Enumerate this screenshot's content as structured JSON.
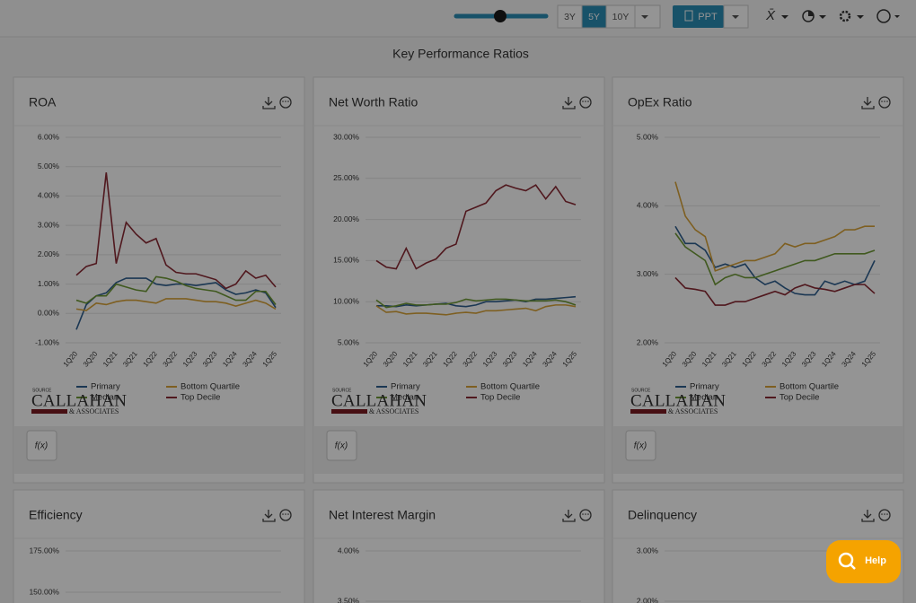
{
  "toolbar": {
    "periods": [
      "3Y",
      "5Y",
      "10Y"
    ],
    "active_period": "5Y",
    "export": "PPT",
    "icons": [
      "X̄"
    ]
  },
  "page_title": "Key Performance Ratios",
  "cards": [
    {
      "title": "ROA",
      "fx": "f(x)",
      "source": {
        "label": "SOURCE",
        "name": "CALLAHAN",
        "sub": "& ASSOCIATES"
      },
      "chart": {
        "type": "line",
        "categories": [
          "1Q20",
          null,
          "3Q20",
          null,
          "1Q21",
          null,
          "3Q21",
          null,
          "1Q22",
          null,
          "3Q22",
          null,
          "1Q23",
          null,
          "3Q23",
          null,
          "1Q24",
          null,
          "3Q24",
          null,
          "1Q25"
        ],
        "ylim": [
          -1,
          6
        ],
        "yticks": [
          {
            "value": -1,
            "label": "-1.00%"
          },
          {
            "value": 0,
            "label": "0.00%"
          },
          {
            "value": 1,
            "label": "1.00%"
          },
          {
            "value": 2,
            "label": "2.00%"
          },
          {
            "value": 3,
            "label": "3.00%"
          },
          {
            "value": 4,
            "label": "4.00%"
          },
          {
            "value": 5,
            "label": "5.00%"
          },
          {
            "value": 6,
            "label": "6.00%"
          }
        ],
        "grid": true,
        "series": [
          {
            "name": "Primary",
            "color": "#2f5f8f",
            "values": [
              -0.55,
              0.3,
              0.6,
              0.7,
              1.05,
              1.2,
              1.2,
              1.2,
              1.0,
              0.95,
              1.0,
              1.0,
              0.95,
              1.0,
              1.05,
              0.8,
              0.65,
              0.7,
              0.8,
              0.7,
              0.2
            ]
          },
          {
            "name": "Bottom Quartile",
            "color": "#d9a43a",
            "values": [
              0.15,
              0.1,
              0.35,
              0.3,
              0.4,
              0.45,
              0.45,
              0.4,
              0.35,
              0.5,
              0.5,
              0.5,
              0.45,
              0.4,
              0.4,
              0.35,
              0.25,
              0.35,
              0.45,
              0.35,
              0.15
            ]
          },
          {
            "name": "Median",
            "color": "#6f9a36",
            "values": [
              0.45,
              0.35,
              0.6,
              0.6,
              1.0,
              0.9,
              0.8,
              0.75,
              1.25,
              1.2,
              1.1,
              0.95,
              0.85,
              0.8,
              0.75,
              0.6,
              0.45,
              0.45,
              0.75,
              0.75,
              0.3
            ]
          },
          {
            "name": "Top Decile",
            "color": "#8a2a34",
            "values": [
              1.3,
              1.6,
              1.7,
              4.8,
              1.7,
              3.1,
              2.7,
              2.4,
              2.55,
              1.65,
              1.4,
              1.35,
              1.35,
              1.25,
              1.15,
              0.85,
              1.0,
              1.45,
              1.2,
              1.3,
              0.9
            ]
          }
        ]
      }
    },
    {
      "title": "Net Worth Ratio",
      "fx": "f(x)",
      "source": {
        "label": "SOURCE",
        "name": "CALLAHAN",
        "sub": "& ASSOCIATES"
      },
      "chart": {
        "type": "line",
        "categories": [
          "1Q20",
          null,
          "3Q20",
          null,
          "1Q21",
          null,
          "3Q21",
          null,
          "1Q22",
          null,
          "3Q22",
          null,
          "1Q23",
          null,
          "3Q23",
          null,
          "1Q24",
          null,
          "3Q24",
          null,
          "1Q25"
        ],
        "ylim": [
          5,
          30
        ],
        "yticks": [
          {
            "value": 5,
            "label": "5.00%"
          },
          {
            "value": 10,
            "label": "10.00%"
          },
          {
            "value": 15,
            "label": "15.00%"
          },
          {
            "value": 20,
            "label": "20.00%"
          },
          {
            "value": 25,
            "label": "25.00%"
          },
          {
            "value": 30,
            "label": "30.00%"
          }
        ],
        "grid": true,
        "series": [
          {
            "name": "Primary",
            "color": "#2f5f8f",
            "values": [
              9.5,
              9.5,
              9.4,
              9.6,
              9.5,
              9.6,
              9.7,
              9.8,
              9.5,
              9.4,
              9.6,
              10,
              10,
              10.1,
              10.2,
              10,
              10.3,
              10.3,
              10.4,
              10.5,
              10.6
            ]
          },
          {
            "name": "Bottom Quartile",
            "color": "#d9a43a",
            "values": [
              9.5,
              8.7,
              8.8,
              8.5,
              8.6,
              8.6,
              8.5,
              8.4,
              8.6,
              8.7,
              8.6,
              8.9,
              8.9,
              9,
              9.1,
              9.2,
              8.9,
              9.4,
              9.6,
              9.6,
              9.4
            ]
          },
          {
            "name": "Median",
            "color": "#6f9a36",
            "values": [
              10.2,
              9.3,
              9.5,
              9.8,
              9.6,
              9.6,
              9.7,
              9.7,
              9.9,
              10.3,
              10.1,
              10.2,
              10.3,
              10.3,
              10.2,
              10.1,
              10.1,
              10.1,
              10.2,
              10,
              9.6
            ]
          },
          {
            "name": "Top Decile",
            "color": "#8a2a34",
            "values": [
              15,
              14.2,
              14,
              16.5,
              14,
              14.7,
              15.2,
              16.5,
              17,
              21,
              21.5,
              22,
              23.5,
              24.2,
              23.8,
              23.5,
              24.2,
              22.5,
              24,
              22.2,
              21.8
            ]
          }
        ]
      }
    },
    {
      "title": "OpEx Ratio",
      "fx": "f(x)",
      "source": {
        "label": "SOURCE",
        "name": "CALLAHAN",
        "sub": "& ASSOCIATES"
      },
      "chart": {
        "type": "line",
        "categories": [
          "1Q20",
          null,
          "3Q20",
          null,
          "1Q21",
          null,
          "3Q21",
          null,
          "1Q22",
          null,
          "3Q22",
          null,
          "1Q23",
          null,
          "3Q23",
          null,
          "1Q24",
          null,
          "3Q24",
          null,
          "1Q25"
        ],
        "ylim": [
          2,
          5
        ],
        "yticks": [
          {
            "value": 2,
            "label": "2.00%"
          },
          {
            "value": 3,
            "label": "3.00%"
          },
          {
            "value": 4,
            "label": "4.00%"
          },
          {
            "value": 5,
            "label": "5.00%"
          }
        ],
        "grid": true,
        "series": [
          {
            "name": "Primary",
            "color": "#2f5f8f",
            "values": [
              3.7,
              3.45,
              3.45,
              3.35,
              3.1,
              3.15,
              3.1,
              3.15,
              2.95,
              2.85,
              2.9,
              2.8,
              2.72,
              2.7,
              2.7,
              2.9,
              2.85,
              2.9,
              2.85,
              2.9,
              3.2
            ]
          },
          {
            "name": "Bottom Quartile",
            "color": "#d9a43a",
            "values": [
              4.35,
              3.85,
              3.65,
              3.55,
              3.05,
              3.1,
              3.15,
              3.2,
              3.2,
              3.25,
              3.3,
              3.45,
              3.4,
              3.45,
              3.45,
              3.5,
              3.55,
              3.65,
              3.65,
              3.7,
              3.7
            ]
          },
          {
            "name": "Median",
            "color": "#6f9a36",
            "values": [
              3.6,
              3.4,
              3.3,
              3.2,
              2.85,
              2.95,
              3.0,
              2.95,
              2.95,
              3.0,
              3.05,
              3.1,
              3.15,
              3.2,
              3.2,
              3.25,
              3.3,
              3.3,
              3.3,
              3.3,
              3.35
            ]
          },
          {
            "name": "Top Decile",
            "color": "#8a2a34",
            "values": [
              2.95,
              2.8,
              2.78,
              2.75,
              2.55,
              2.55,
              2.6,
              2.6,
              2.65,
              2.7,
              2.75,
              2.7,
              2.8,
              2.85,
              2.8,
              2.78,
              2.75,
              2.8,
              2.85,
              2.85,
              2.72
            ]
          }
        ]
      }
    },
    {
      "title": "Efficiency",
      "chart": {
        "type": "line",
        "yticks": [
          {
            "value": 175,
            "label": "175.00%"
          },
          {
            "value": 150,
            "label": "150.00%"
          }
        ]
      }
    },
    {
      "title": "Net Interest Margin",
      "chart": {
        "type": "line",
        "yticks": [
          {
            "value": 4,
            "label": "4.00%"
          },
          {
            "value": 3.5,
            "label": "3.50%"
          }
        ]
      }
    },
    {
      "title": "Delinquency",
      "chart": {
        "type": "bar",
        "yticks": [
          {
            "value": 3,
            "label": "3.00%"
          },
          {
            "value": 2,
            "label": "2.00%"
          }
        ]
      }
    }
  ],
  "help": "Help"
}
